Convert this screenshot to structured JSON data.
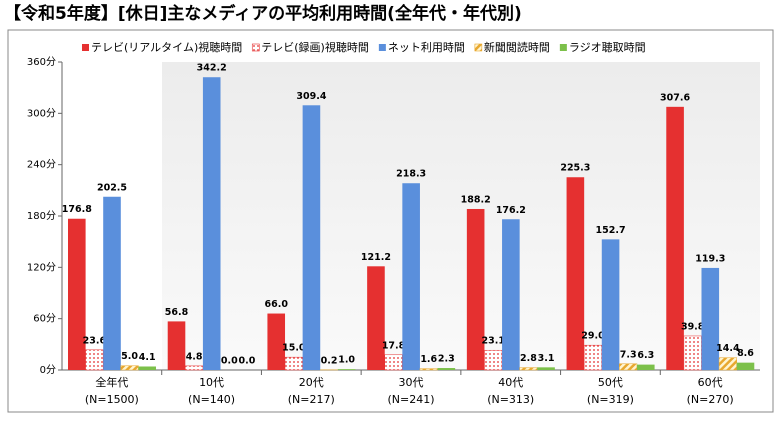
{
  "chart_data": {
    "type": "bar",
    "title": "【令和5年度】[休日]主なメディアの平均利用時間(全年代・年代別)",
    "categories": [
      "全年代",
      "10代",
      "20代",
      "30代",
      "40代",
      "50代",
      "60代"
    ],
    "category_notes": [
      "(N=1500)",
      "(N=140)",
      "(N=217)",
      "(N=241)",
      "(N=313)",
      "(N=319)",
      "(N=270)"
    ],
    "series": [
      {
        "name": "テレビ(リアルタイム)視聴時間",
        "color": "#e53030",
        "values": [
          176.8,
          56.8,
          66.0,
          121.2,
          188.2,
          225.3,
          307.6
        ],
        "value_labels": [
          "176.8",
          "56.8",
          "66.0",
          "121.2",
          "188.2",
          "225.3",
          "307.6"
        ]
      },
      {
        "name": "テレビ(録画)視聴時間",
        "color": "#e53030",
        "pattern": "dots",
        "values": [
          23.6,
          4.8,
          15.0,
          17.8,
          23.1,
          29.0,
          39.8
        ],
        "value_labels": [
          "23.6",
          "4.8",
          "15.0",
          "17.8",
          "23.1",
          "29.0",
          "39.8"
        ]
      },
      {
        "name": "ネット利用時間",
        "color": "#5a8fdc",
        "values": [
          202.5,
          342.2,
          309.4,
          218.3,
          176.2,
          152.7,
          119.3
        ],
        "value_labels": [
          "202.5",
          "342.2",
          "309.4",
          "218.3",
          "176.2",
          "152.7",
          "119.3"
        ]
      },
      {
        "name": "新聞閲読時間",
        "color": "#e8a830",
        "pattern": "hatch",
        "values": [
          5.0,
          0.0,
          0.2,
          1.6,
          2.8,
          7.3,
          14.4
        ],
        "value_labels": [
          "5.0",
          "0.0",
          "0.2",
          "1.6",
          "2.8",
          "7.3",
          "14.4"
        ]
      },
      {
        "name": "ラジオ聴取時間",
        "color": "#7cc04a",
        "values": [
          4.1,
          0.0,
          1.0,
          2.3,
          3.1,
          6.3,
          8.6
        ],
        "value_labels": [
          "4.1",
          "0.0",
          "1.0",
          "2.3",
          "3.1",
          "6.3",
          "8.6"
        ]
      }
    ],
    "ylim": [
      0,
      360
    ],
    "yticks": [
      {
        "value": 0,
        "label": "0分"
      },
      {
        "value": 60,
        "label": "60分"
      },
      {
        "value": 120,
        "label": "120分"
      },
      {
        "value": 180,
        "label": "180分"
      },
      {
        "value": 240,
        "label": "240分"
      },
      {
        "value": 300,
        "label": "300分"
      },
      {
        "value": 360,
        "label": "360分"
      }
    ]
  }
}
